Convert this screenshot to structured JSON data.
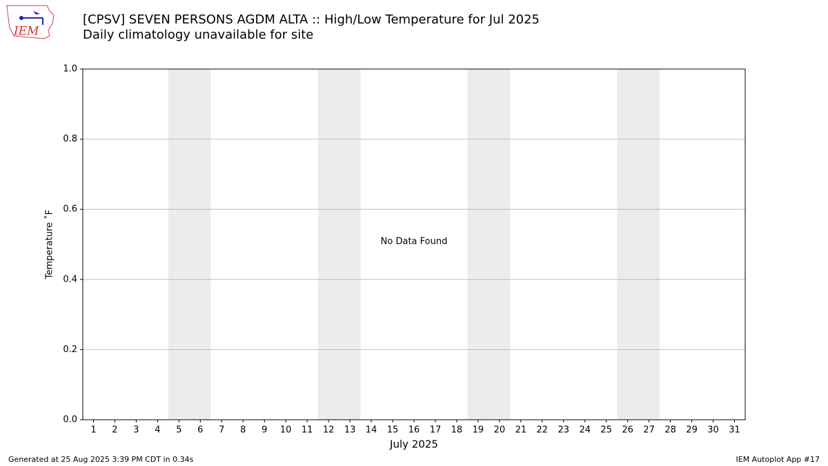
{
  "chart_data": {
    "type": "line",
    "title": "[CPSV] SEVEN PERSONS AGDM  ALTA :: High/Low Temperature for Jul 2025",
    "subtitle": "Daily climatology unavailable for site",
    "y_label": "Temperature ˚F",
    "x_label": "July 2025",
    "annotation": "No Data Found",
    "logo_text": "IEM",
    "footer_left": "Generated at 25 Aug 2025 3:39 PM CDT in 0.34s",
    "footer_right": "IEM Autoplot App #17",
    "series": [],
    "xlim": [
      0.5,
      31.5
    ],
    "xticks": [
      1,
      2,
      3,
      4,
      5,
      6,
      7,
      8,
      9,
      10,
      11,
      12,
      13,
      14,
      15,
      16,
      17,
      18,
      19,
      20,
      21,
      22,
      23,
      24,
      25,
      26,
      27,
      28,
      29,
      30,
      31
    ],
    "ylim": [
      0,
      1
    ],
    "yticks": [
      {
        "value": 0,
        "label": "0.0"
      },
      {
        "value": 0.2,
        "label": "0.2"
      },
      {
        "value": 0.4,
        "label": "0.4"
      },
      {
        "value": 0.6,
        "label": "0.6"
      },
      {
        "value": 0.8,
        "label": "0.8"
      },
      {
        "value": 1,
        "label": "1.0"
      }
    ],
    "grid": true,
    "shaded": [
      5,
      6,
      12,
      13,
      19,
      20,
      26,
      27
    ],
    "shade_color": "#ececec"
  }
}
